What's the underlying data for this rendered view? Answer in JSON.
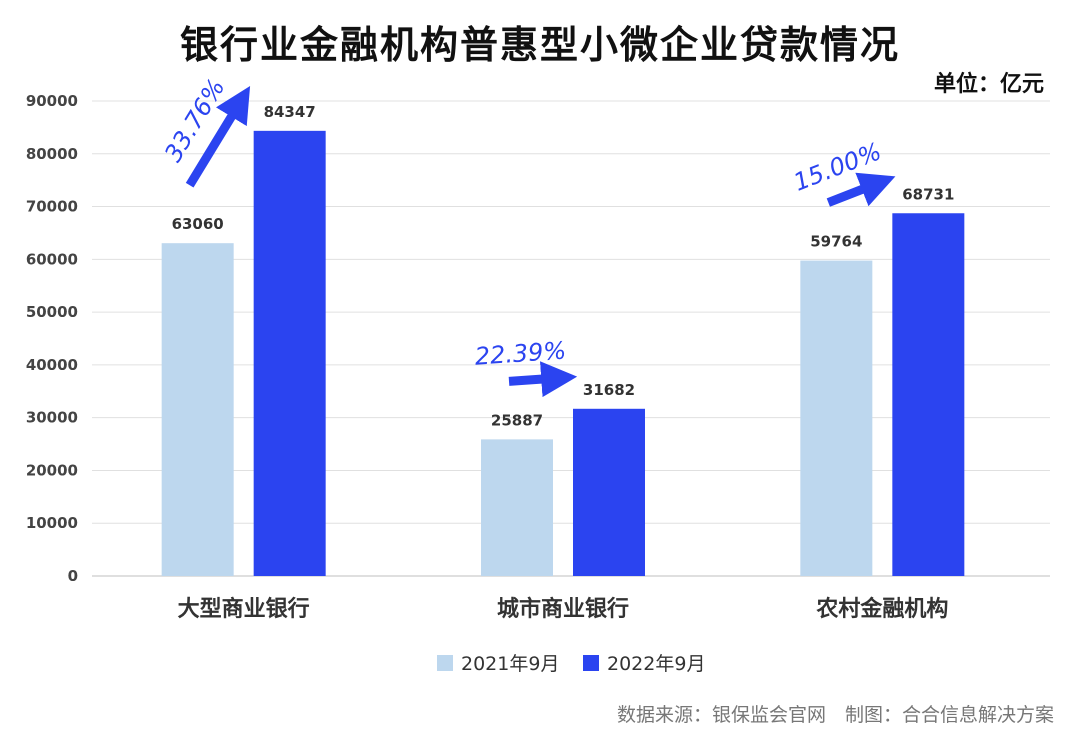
{
  "header": {
    "title": "银行业金融机构普惠型小微企业贷款情况",
    "unit": "单位：亿元"
  },
  "footer": {
    "source": "数据来源：银保监会官网　制图：合合信息解决方案"
  },
  "chart_data": {
    "type": "bar",
    "title": "银行业金融机构普惠型小微企业贷款情况",
    "categories": [
      "大型商业银行",
      "城市商业银行",
      "农村金融机构"
    ],
    "series": [
      {
        "name": "2021年9月",
        "values": [
          63060,
          25887,
          59764
        ],
        "color": "#bdd7ee"
      },
      {
        "name": "2022年9月",
        "values": [
          84347,
          31682,
          68731
        ],
        "color": "#2b44f0"
      }
    ],
    "growth_rates": [
      "33.76%",
      "22.39%",
      "15.00%"
    ],
    "growth_color": "#2b44f0",
    "ylim": [
      0,
      90000
    ],
    "yticks": [
      0,
      10000,
      20000,
      30000,
      40000,
      50000,
      60000,
      70000,
      80000,
      90000
    ],
    "grid": true,
    "legend_position": "bottom-center"
  }
}
